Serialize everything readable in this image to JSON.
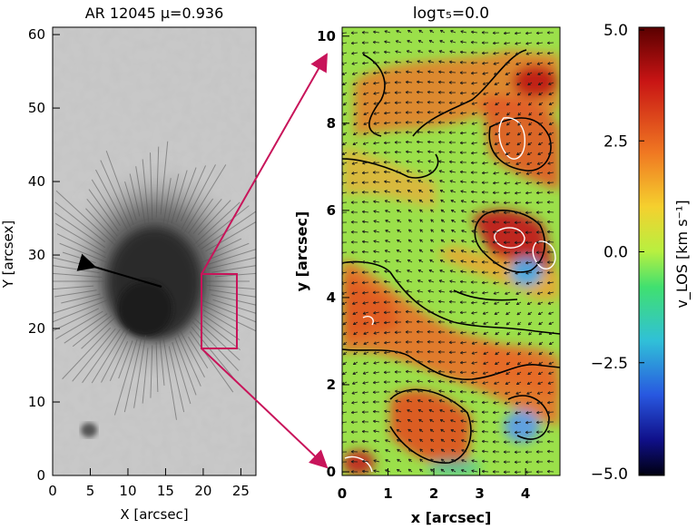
{
  "left_panel": {
    "title": "AR 12045  μ=0.936",
    "xlabel": "X [arcsec]",
    "ylabel": "Y [arcsex]",
    "xticks": [
      "0",
      "5",
      "10",
      "15",
      "20",
      "25"
    ],
    "yticks": [
      "0",
      "10",
      "20",
      "30",
      "40",
      "50",
      "60"
    ]
  },
  "right_panel": {
    "title": "logτ₅=0.0",
    "xlabel": "x [arcsec]",
    "ylabel": "y [arcsec]",
    "xticks": [
      "0",
      "1",
      "2",
      "3",
      "4"
    ],
    "yticks": [
      "0",
      "2",
      "4",
      "6",
      "8",
      "10"
    ]
  },
  "colorbar": {
    "label": "v_LOS [km s⁻¹]",
    "ticks": [
      "5.0",
      "2.5",
      "0.0",
      "−2.5",
      "−5.0"
    ],
    "colors": [
      "#7a0000",
      "#d01a10",
      "#f07020",
      "#f6c030",
      "#c8f040",
      "#40e060",
      "#30c8c8",
      "#3070e0",
      "#1010a0",
      "#000010"
    ]
  },
  "colors": {
    "connector": "#c8145a",
    "axis": "#000000"
  }
}
